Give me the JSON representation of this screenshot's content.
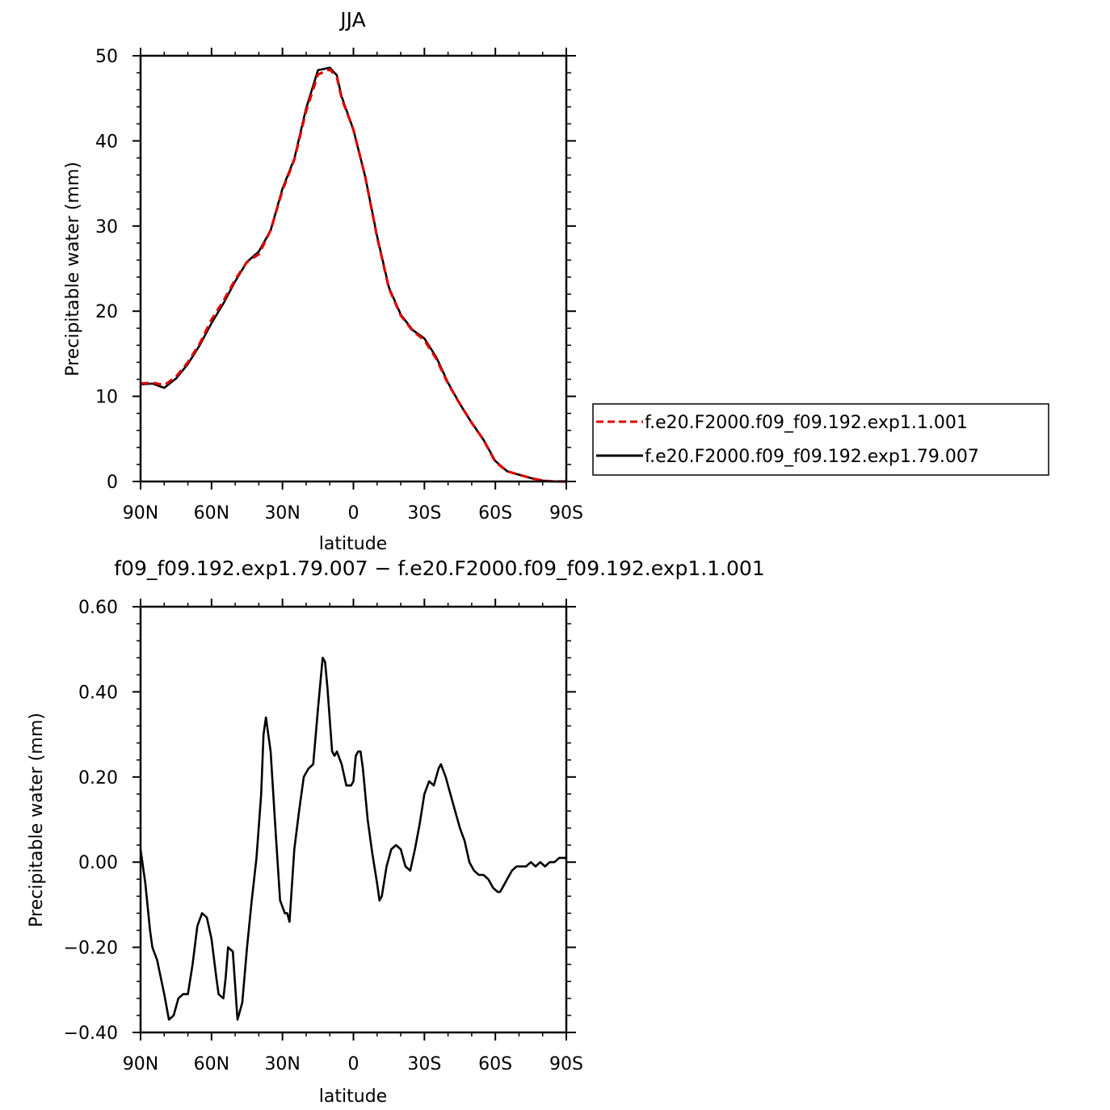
{
  "chart_data": [
    {
      "type": "line",
      "title": "JJA",
      "xlabel": "latitude",
      "ylabel": "Precipitable water (mm)",
      "xlim": [
        90,
        -90
      ],
      "ylim": [
        0,
        50
      ],
      "x_tick_values": [
        90,
        60,
        30,
        0,
        -30,
        -60,
        -90
      ],
      "x_tick_labels": [
        "90N",
        "60N",
        "30N",
        "0",
        "30S",
        "60S",
        "90S"
      ],
      "y_tick_values": [
        0,
        10,
        20,
        30,
        40,
        50
      ],
      "y_tick_labels": [
        "0",
        "10",
        "20",
        "30",
        "40",
        "50"
      ],
      "grid": false,
      "legend_position": "right",
      "series": [
        {
          "name": "f.e20.F2000.f09_f09.192.exp1.1.001",
          "color": "#e00000",
          "dash": "dashed",
          "x": [
            90,
            85,
            80,
            75,
            70,
            65,
            60,
            55,
            50,
            45,
            40,
            35,
            30,
            25,
            20,
            15,
            10,
            7,
            5,
            0,
            -5,
            -10,
            -15,
            -20,
            -25,
            -30,
            -35,
            -40,
            -45,
            -50,
            -55,
            -60,
            -65,
            -70,
            -75,
            -80,
            -85,
            -90
          ],
          "y": [
            11.5,
            11.6,
            11.3,
            12.3,
            14.0,
            16.2,
            19.0,
            21.2,
            23.7,
            25.8,
            26.7,
            29.5,
            34.2,
            37.8,
            43.5,
            47.8,
            48.4,
            47.5,
            45.0,
            41.3,
            35.8,
            28.7,
            22.7,
            19.5,
            17.7,
            16.6,
            14.4,
            11.5,
            9.1,
            6.9,
            4.9,
            2.3,
            1.2,
            0.8,
            0.4,
            0.1,
            0.0,
            0.0
          ]
        },
        {
          "name": "f.e20.F2000.f09_f09.192.exp1.79.007",
          "color": "#000000",
          "dash": "solid",
          "x": [
            90,
            85,
            80,
            75,
            70,
            65,
            60,
            55,
            50,
            45,
            40,
            35,
            30,
            25,
            20,
            15,
            10,
            7,
            5,
            0,
            -5,
            -10,
            -15,
            -20,
            -25,
            -30,
            -35,
            -40,
            -45,
            -50,
            -55,
            -60,
            -65,
            -70,
            -75,
            -80,
            -85,
            -90
          ],
          "y": [
            11.4,
            11.5,
            11.0,
            12.1,
            13.8,
            16.0,
            18.6,
            20.9,
            23.5,
            25.8,
            27.0,
            29.5,
            34.4,
            37.9,
            43.8,
            48.3,
            48.6,
            47.7,
            45.2,
            41.3,
            35.8,
            28.8,
            22.8,
            19.6,
            17.8,
            16.8,
            14.6,
            11.6,
            9.1,
            6.9,
            4.9,
            2.4,
            1.2,
            0.8,
            0.4,
            0.1,
            0.0,
            0.0
          ]
        }
      ]
    },
    {
      "type": "line",
      "title": "f09_f09.192.exp1.79.007 − f.e20.F2000.f09_f09.192.exp1.1.001",
      "xlabel": "latitude",
      "ylabel": "Precipitable water (mm)",
      "xlim": [
        90,
        -90
      ],
      "ylim": [
        -0.4,
        0.6
      ],
      "x_tick_values": [
        90,
        60,
        30,
        0,
        -30,
        -60,
        -90
      ],
      "x_tick_labels": [
        "90N",
        "60N",
        "30N",
        "0",
        "30S",
        "60S",
        "90S"
      ],
      "y_tick_values": [
        -0.4,
        -0.2,
        0.0,
        0.2,
        0.4,
        0.6
      ],
      "y_tick_labels": [
        "−0.40",
        "−0.20",
        "0.00",
        "0.20",
        "0.40",
        "0.60"
      ],
      "grid": false,
      "series": [
        {
          "color": "#000000",
          "dash": "solid",
          "x": [
            90,
            88,
            86,
            85,
            83,
            80,
            78,
            76,
            74,
            72,
            70,
            68,
            66,
            64,
            62,
            60,
            58,
            57,
            55,
            54,
            53,
            51,
            50,
            49,
            47,
            45,
            43,
            41,
            39,
            38,
            37,
            35,
            33,
            31,
            29,
            28,
            27,
            25,
            23,
            21,
            19,
            17,
            15,
            13,
            12,
            11,
            9,
            8,
            7,
            5,
            3,
            1,
            0,
            -1,
            -2,
            -3,
            -4,
            -6,
            -8,
            -10,
            -11,
            -12,
            -14,
            -16,
            -18,
            -20,
            -22,
            -24,
            -26,
            -28,
            -30,
            -32,
            -34,
            -36,
            -37,
            -39,
            -41,
            -43,
            -45,
            -47,
            -49,
            -51,
            -53,
            -55,
            -57,
            -59,
            -61,
            -62,
            -63,
            -65,
            -67,
            -69,
            -71,
            -73,
            -75,
            -77,
            -79,
            -81,
            -83,
            -85,
            -87,
            -89,
            -90
          ],
          "y": [
            0.03,
            -0.05,
            -0.16,
            -0.2,
            -0.23,
            -0.31,
            -0.37,
            -0.36,
            -0.32,
            -0.31,
            -0.31,
            -0.24,
            -0.15,
            -0.12,
            -0.13,
            -0.18,
            -0.27,
            -0.31,
            -0.32,
            -0.27,
            -0.2,
            -0.21,
            -0.29,
            -0.37,
            -0.33,
            -0.2,
            -0.09,
            0.01,
            0.16,
            0.3,
            0.34,
            0.26,
            0.08,
            -0.09,
            -0.12,
            -0.12,
            -0.14,
            0.03,
            0.12,
            0.2,
            0.22,
            0.23,
            0.36,
            0.48,
            0.47,
            0.41,
            0.26,
            0.25,
            0.26,
            0.23,
            0.18,
            0.18,
            0.19,
            0.25,
            0.26,
            0.26,
            0.22,
            0.1,
            0.02,
            -0.05,
            -0.09,
            -0.08,
            -0.01,
            0.03,
            0.04,
            0.03,
            -0.01,
            -0.02,
            0.03,
            0.09,
            0.16,
            0.19,
            0.18,
            0.22,
            0.23,
            0.2,
            0.16,
            0.12,
            0.08,
            0.05,
            0.0,
            -0.02,
            -0.03,
            -0.03,
            -0.04,
            -0.06,
            -0.07,
            -0.07,
            -0.06,
            -0.04,
            -0.02,
            -0.01,
            -0.01,
            -0.01,
            0.0,
            -0.01,
            0.0,
            -0.01,
            0.0,
            0.0,
            0.01,
            0.01,
            0.01
          ]
        }
      ]
    }
  ]
}
